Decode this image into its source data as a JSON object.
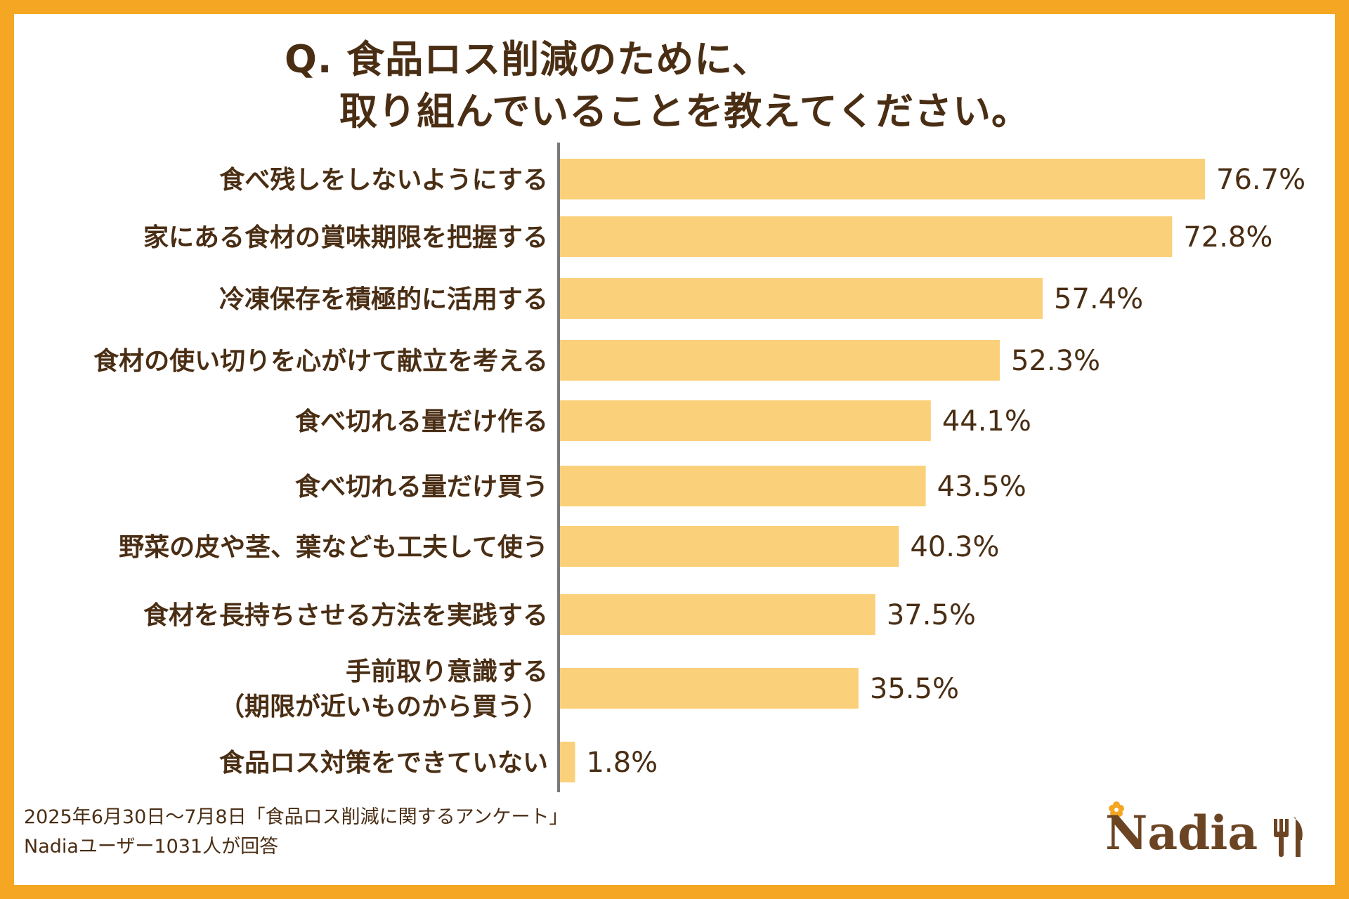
{
  "title": {
    "line1": "Q. 食品ロス削減のために、",
    "line2": "取り組んでいることを教えてください。"
  },
  "chart_data": {
    "type": "bar",
    "orientation": "horizontal",
    "categories": [
      [
        "食べ残しをしないようにする"
      ],
      [
        "家にある食材の賞味期限を把握する"
      ],
      [
        "冷凍保存を積極的に活用する"
      ],
      [
        "食材の使い切りを心がけて献立を考える"
      ],
      [
        "食べ切れる量だけ作る"
      ],
      [
        "食べ切れる量だけ買う"
      ],
      [
        "野菜の皮や茎、葉なども工夫して使う"
      ],
      [
        "食材を長持ちさせる方法を実践する"
      ],
      [
        "手前取り意識する",
        "（期限が近いものから買う）"
      ],
      [
        "食品ロス対策をできていない"
      ]
    ],
    "values": [
      76.7,
      72.8,
      57.4,
      52.3,
      44.1,
      43.5,
      40.3,
      37.5,
      35.5,
      1.8
    ],
    "value_labels": [
      "76.7%",
      "72.8%",
      "57.4%",
      "52.3%",
      "44.1%",
      "43.5%",
      "40.3%",
      "37.5%",
      "35.5%",
      "1.8%"
    ],
    "xlim": [
      0,
      100
    ],
    "bar_color": "#FAD17A",
    "axis_color": "#7A7A7A",
    "text_color": "#4A2E14",
    "grid": false
  },
  "footer": {
    "source_line1": "2025年6月30日〜7月8日「食品ロス削減に関するアンケート」",
    "source_line2": "Nadiaユーザー1031人が回答"
  },
  "logo": {
    "text": "Nadia",
    "icon": "flower-and-cutlery-icon",
    "brand_color": "#6B4423",
    "accent_color": "#F5A623"
  },
  "colors": {
    "border": "#F5A623",
    "background": "#FFFFFF"
  }
}
